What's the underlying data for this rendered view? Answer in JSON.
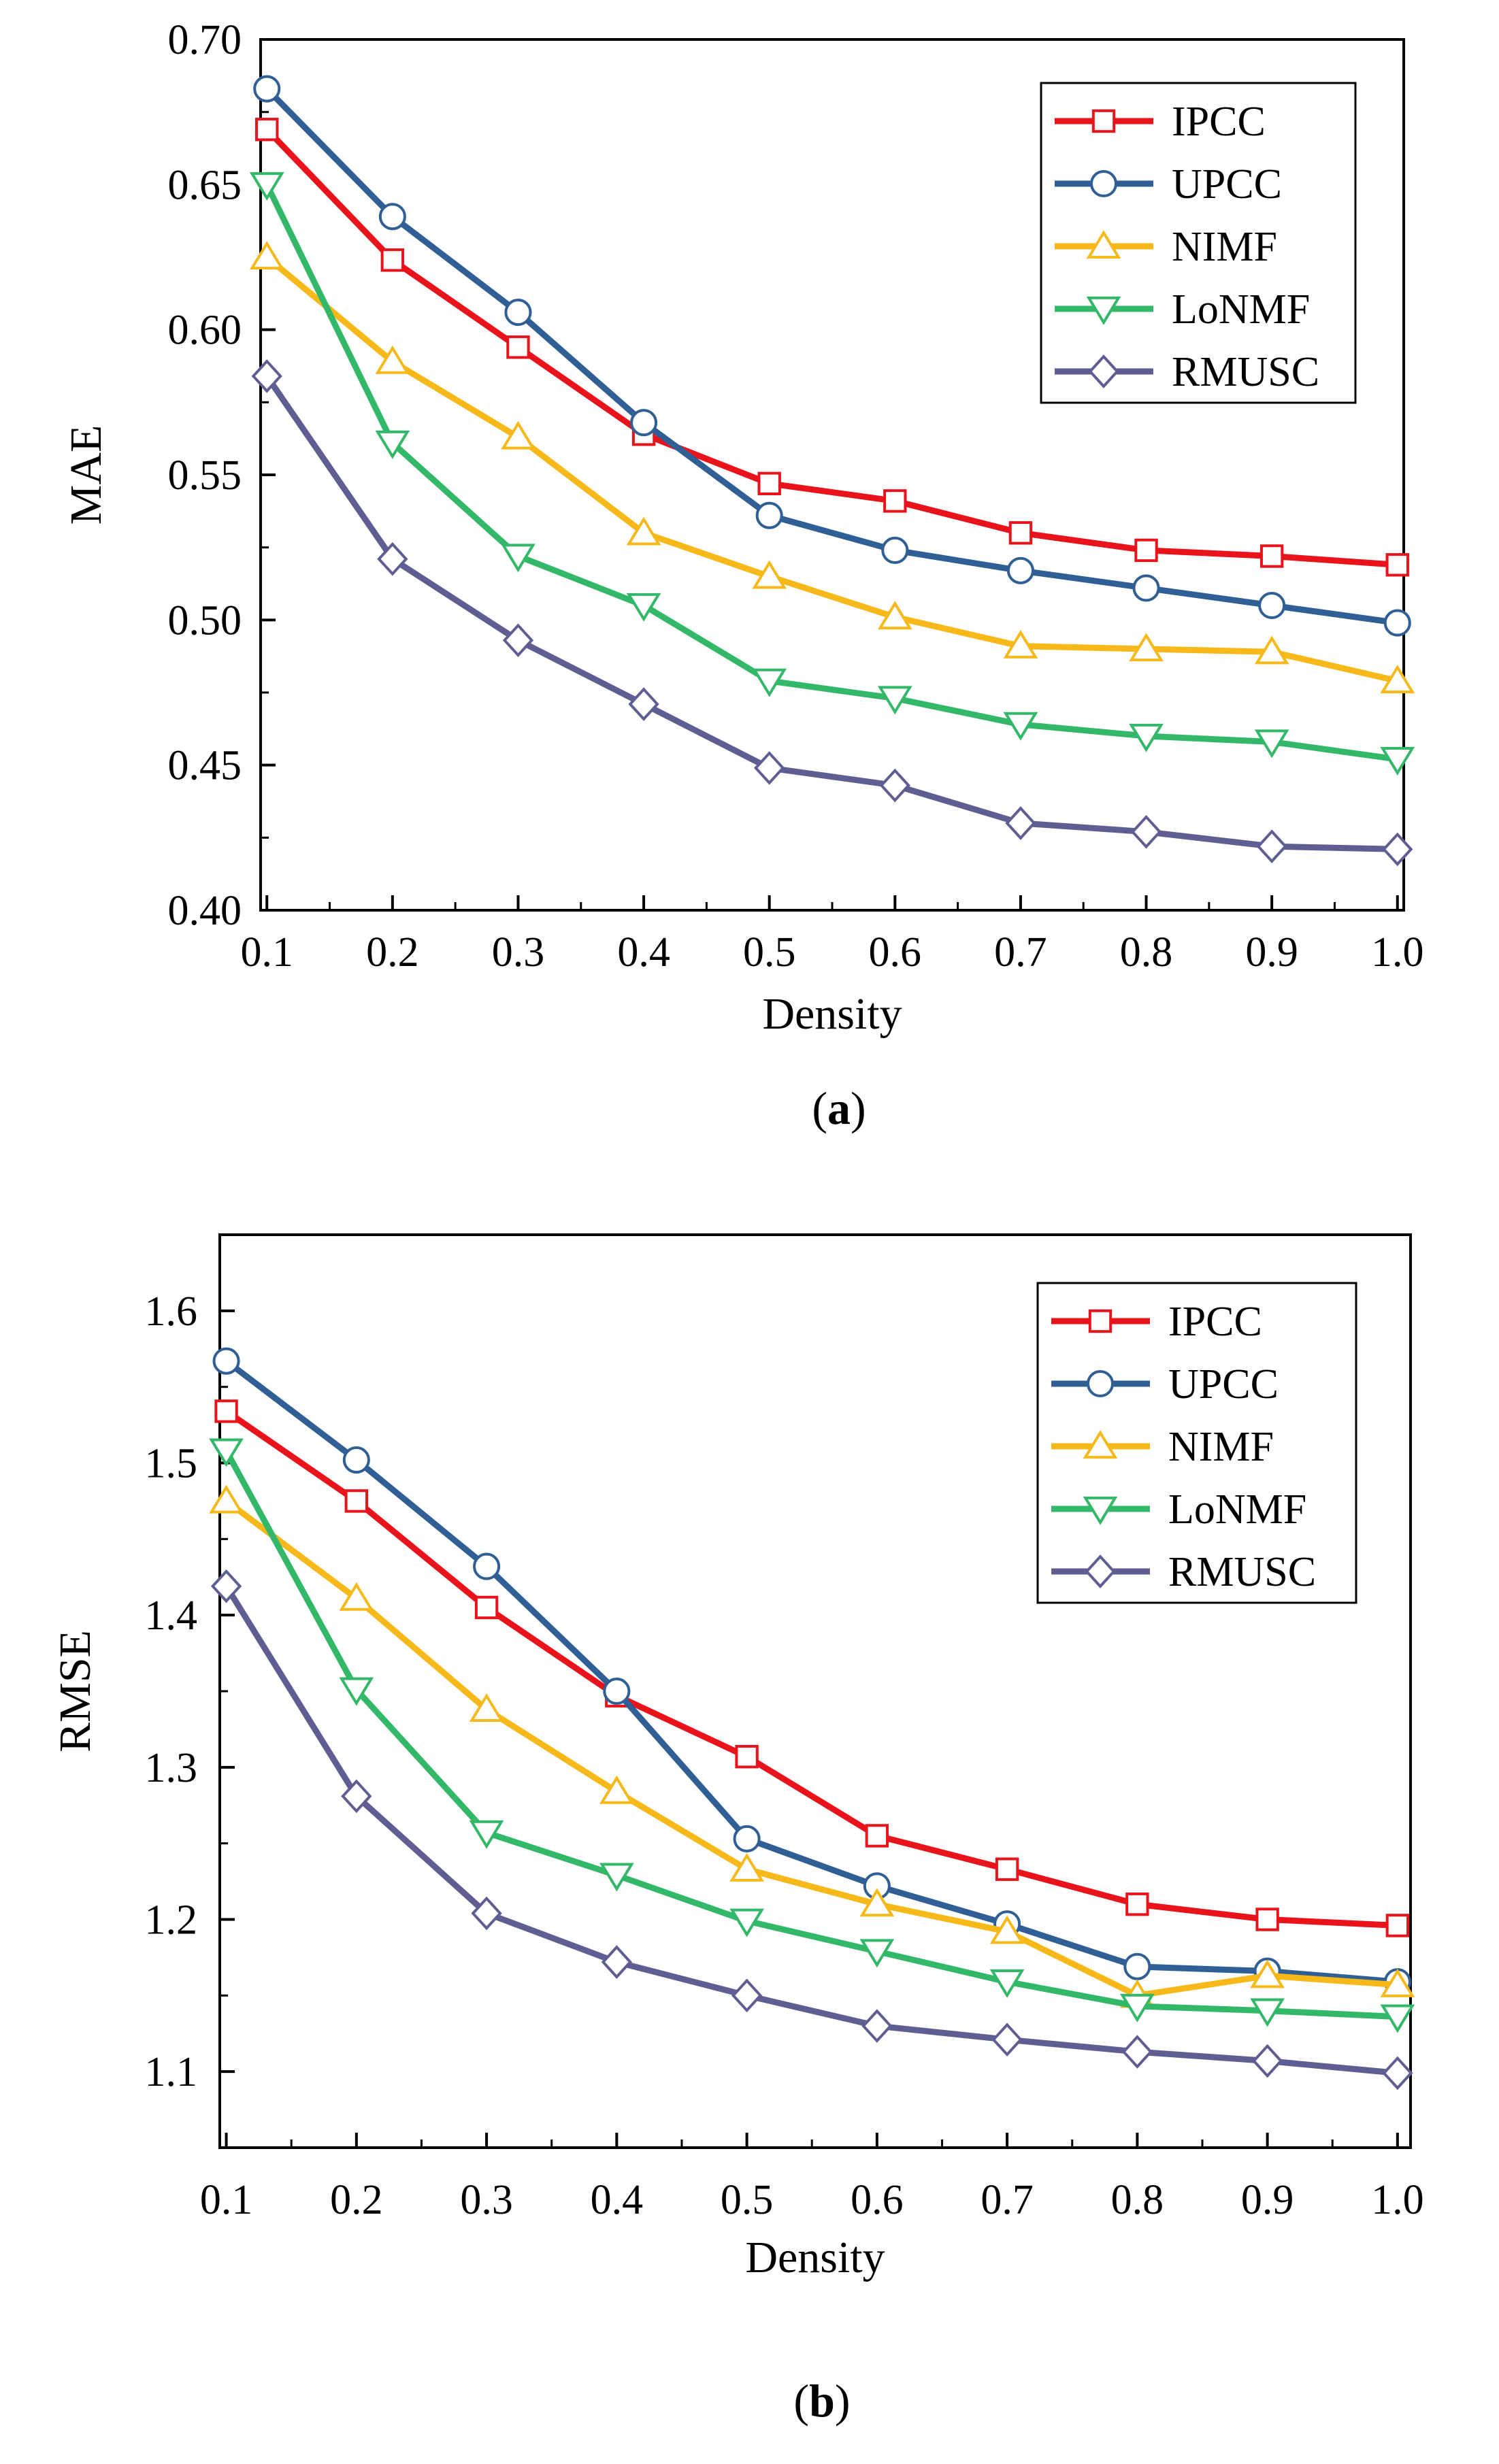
{
  "chart_data": [
    {
      "type": "line",
      "panel": "a",
      "caption": {
        "open": "(",
        "letter": "a",
        "close": ")"
      },
      "xlabel": "Density",
      "ylabel": "MAE",
      "x": [
        0.1,
        0.2,
        0.3,
        0.4,
        0.5,
        0.6,
        0.7,
        0.8,
        0.9,
        1.0
      ],
      "x_tick_labels": [
        "0.1",
        "0.2",
        "0.3",
        "0.4",
        "0.5",
        "0.6",
        "0.7",
        "0.8",
        "0.9",
        "1.0"
      ],
      "xlim": [
        0.095,
        1.005
      ],
      "ylim": [
        0.4,
        0.7
      ],
      "y_ticks": [
        0.4,
        0.45,
        0.5,
        0.55,
        0.6,
        0.65,
        0.7
      ],
      "y_tick_labels": [
        "0.40",
        "0.45",
        "0.50",
        "0.55",
        "0.60",
        "0.65",
        "0.70"
      ],
      "legend_position": "top-right",
      "series": [
        {
          "name": "IPCC",
          "color": "#e8131b",
          "marker": "square",
          "values": [
            0.669,
            0.624,
            0.594,
            0.564,
            0.547,
            0.541,
            0.53,
            0.524,
            0.522,
            0.519
          ]
        },
        {
          "name": "UPCC",
          "color": "#2f5f94",
          "marker": "circle",
          "values": [
            0.683,
            0.639,
            0.606,
            0.568,
            0.536,
            0.524,
            0.517,
            0.511,
            0.505,
            0.499
          ]
        },
        {
          "name": "NIMF",
          "color": "#f6b919",
          "marker": "triangle-up",
          "values": [
            0.625,
            0.589,
            0.563,
            0.53,
            0.515,
            0.501,
            0.491,
            0.49,
            0.489,
            0.479
          ]
        },
        {
          "name": "LoNMF",
          "color": "#33b86a",
          "marker": "triangle-down",
          "values": [
            0.65,
            0.561,
            0.522,
            0.505,
            0.479,
            0.473,
            0.464,
            0.46,
            0.458,
            0.452
          ]
        },
        {
          "name": "RMUSC",
          "color": "#5e5e93",
          "marker": "diamond",
          "values": [
            0.584,
            0.521,
            0.493,
            0.471,
            0.449,
            0.443,
            0.43,
            0.427,
            0.422,
            0.421
          ]
        }
      ]
    },
    {
      "type": "line",
      "panel": "b",
      "caption": {
        "open": "(",
        "letter": "b",
        "close": ")"
      },
      "xlabel": "Density",
      "ylabel": "RMSE",
      "x": [
        0.1,
        0.2,
        0.3,
        0.4,
        0.5,
        0.6,
        0.7,
        0.8,
        0.9,
        1.0
      ],
      "x_tick_labels": [
        "0.1",
        "0.2",
        "0.3",
        "0.4",
        "0.5",
        "0.6",
        "0.7",
        "0.8",
        "0.9",
        "1.0"
      ],
      "xlim": [
        0.095,
        1.01
      ],
      "ylim": [
        1.05,
        1.65
      ],
      "y_ticks": [
        1.1,
        1.2,
        1.3,
        1.4,
        1.5,
        1.6
      ],
      "y_tick_labels": [
        "1.1",
        "1.2",
        "1.3",
        "1.4",
        "1.5",
        "1.6"
      ],
      "legend_position": "top-right",
      "series": [
        {
          "name": "IPCC",
          "color": "#e8131b",
          "marker": "square",
          "values": [
            1.534,
            1.475,
            1.405,
            1.347,
            1.307,
            1.255,
            1.233,
            1.21,
            1.2,
            1.196
          ]
        },
        {
          "name": "UPCC",
          "color": "#2f5f94",
          "marker": "circle",
          "values": [
            1.567,
            1.502,
            1.432,
            1.35,
            1.253,
            1.222,
            1.197,
            1.169,
            1.166,
            1.159
          ]
        },
        {
          "name": "NIMF",
          "color": "#f6b919",
          "marker": "triangle-up",
          "values": [
            1.475,
            1.411,
            1.338,
            1.284,
            1.233,
            1.21,
            1.192,
            1.15,
            1.163,
            1.157
          ]
        },
        {
          "name": "LoNMF",
          "color": "#33b86a",
          "marker": "triangle-down",
          "values": [
            1.508,
            1.351,
            1.257,
            1.229,
            1.199,
            1.179,
            1.159,
            1.143,
            1.14,
            1.136
          ]
        },
        {
          "name": "RMUSC",
          "color": "#5e5e93",
          "marker": "diamond",
          "values": [
            1.419,
            1.281,
            1.204,
            1.172,
            1.15,
            1.13,
            1.121,
            1.113,
            1.107,
            1.099
          ]
        }
      ]
    }
  ]
}
